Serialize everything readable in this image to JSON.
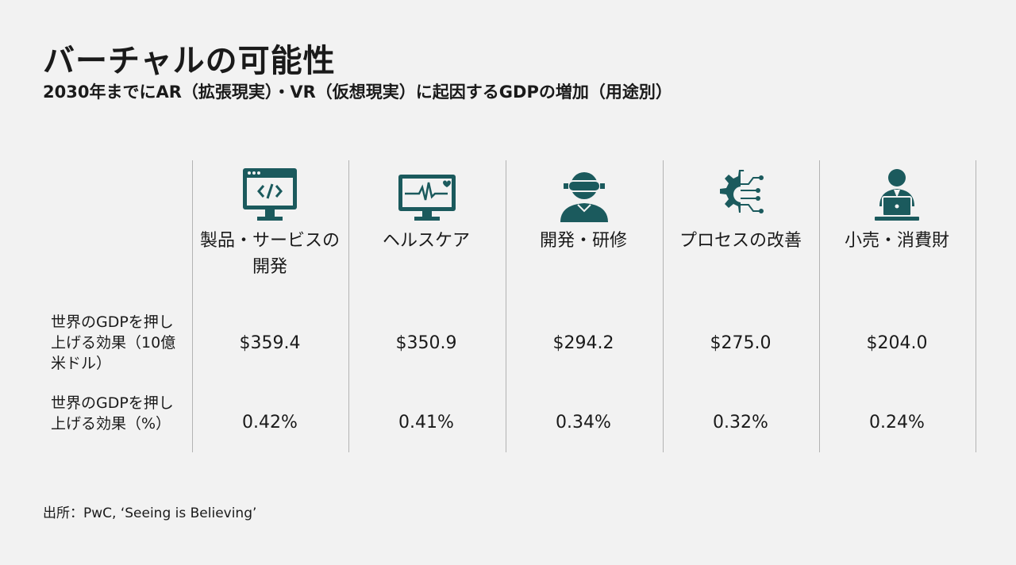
{
  "title": "バーチャルの可能性",
  "subtitle": "2030年までにAR（拡張現実）・VR（仮想現実）に起因するGDPの増加（用途別）",
  "source": "出所：PwC, ‘Seeing is Believing’",
  "accent_color": "#1b5a5d",
  "chart_data": {
    "type": "table",
    "columns": [
      {
        "label": "製品・サービスの開発",
        "icon": "code-monitor-icon"
      },
      {
        "label": "ヘルスケア",
        "icon": "heartbeat-monitor-icon"
      },
      {
        "label": "開発・研修",
        "icon": "vr-headset-person-icon"
      },
      {
        "label": "プロセスの改善",
        "icon": "gear-circuit-icon"
      },
      {
        "label": "小売・消費財",
        "icon": "person-laptop-icon"
      }
    ],
    "rows": [
      {
        "label": "世界のGDPを押し上げる効果（10億米ドル）",
        "values": [
          "$359.4",
          "$350.9",
          "$294.2",
          "$275.0",
          "$204.0"
        ]
      },
      {
        "label": "世界のGDPを押し上げる効果（%）",
        "values": [
          "0.42%",
          "0.41%",
          "0.34%",
          "0.32%",
          "0.24%"
        ]
      }
    ]
  }
}
